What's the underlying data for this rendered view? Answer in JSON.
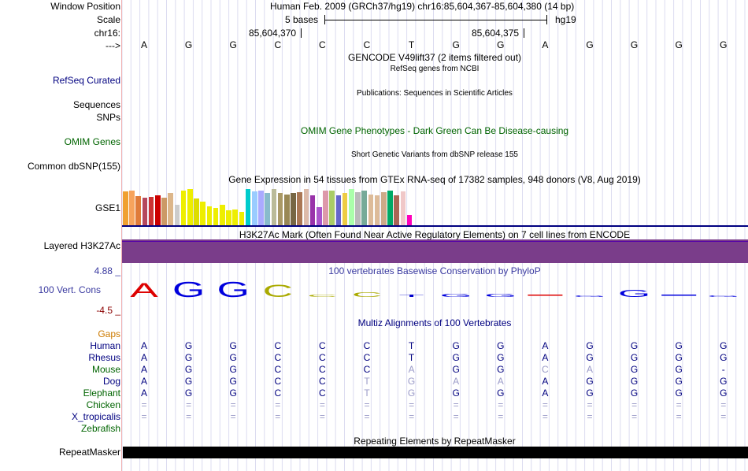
{
  "header": {
    "window_position_label": "Window Position",
    "window_position_value": "Human Feb. 2009 (GRCh37/hg19)   chr16:85,604,367-85,604,380 (14 bp)",
    "scale_label": "Scale",
    "scale_text": "5 bases",
    "scale_db": "hg19",
    "chrom_label": "chr16:",
    "coord1": "85,604,370",
    "coord2": "85,604,375",
    "strand_label": "--->"
  },
  "bases": [
    "A",
    "G",
    "G",
    "C",
    "C",
    "C",
    "T",
    "G",
    "G",
    "A",
    "G",
    "G",
    "G",
    "G"
  ],
  "tracks": {
    "gencode_title": "GENCODE V49lift37 (2 items filtered out)",
    "refseq_label": "RefSeq Curated",
    "refseq_title": "RefSeq genes from NCBI",
    "sequences_label": "Sequences",
    "snps_label": "SNPs",
    "publications_title": "Publications: Sequences in Scientific Articles",
    "omim_title": "OMIM Gene Phenotypes - Dark Green Can Be Disease-causing",
    "omim_label": "OMIM Genes",
    "dbsnp_title": "Short Genetic Variants from dbSNP release 155",
    "dbsnp_label": "Common dbSNP(155)",
    "gtex_title": "Gene Expression in 54 tissues from GTEx RNA-seq of 17382 samples, 948 donors (V8, Aug 2019)",
    "gtex_label": "GSE1",
    "h3k27_title": "H3K27Ac Mark (Often Found Near Active Regulatory Elements) on 7 cell lines from ENCODE",
    "h3k27_label": "Layered H3K27Ac",
    "phylop_max": "4.88 _",
    "phylop_min": "-4.5 _",
    "phylop_label": "100 Vert. Cons",
    "phylop_title": "100 vertebrates Basewise Conservation by PhyloP",
    "multiz_title": "Multiz Alignments of 100 Vertebrates",
    "gaps_label": "Gaps",
    "repeat_title": "Repeating Elements by RepeatMasker",
    "repeat_label": "RepeatMasker"
  },
  "gtex_bars": [
    {
      "h": 0.9,
      "c": "#f0a030"
    },
    {
      "h": 0.92,
      "c": "#f7a35c"
    },
    {
      "h": 0.78,
      "c": "#e07b39"
    },
    {
      "h": 0.72,
      "c": "#b5485d"
    },
    {
      "h": 0.75,
      "c": "#cc3333"
    },
    {
      "h": 0.8,
      "c": "#cc0000"
    },
    {
      "h": 0.72,
      "c": "#cc9966"
    },
    {
      "h": 0.85,
      "c": "#dcb68a"
    },
    {
      "h": 0.55,
      "c": "#cccccc"
    },
    {
      "h": 0.92,
      "c": "#eeee00"
    },
    {
      "h": 0.95,
      "c": "#eeee00"
    },
    {
      "h": 0.7,
      "c": "#dddd00"
    },
    {
      "h": 0.62,
      "c": "#eeee00"
    },
    {
      "h": 0.5,
      "c": "#eeee00"
    },
    {
      "h": 0.45,
      "c": "#eeee00"
    },
    {
      "h": 0.55,
      "c": "#eeee00"
    },
    {
      "h": 0.4,
      "c": "#eeee00"
    },
    {
      "h": 0.42,
      "c": "#eeee00"
    },
    {
      "h": 0.35,
      "c": "#eeee00"
    },
    {
      "h": 0.95,
      "c": "#00cccc"
    },
    {
      "h": 0.9,
      "c": "#99ccff"
    },
    {
      "h": 0.92,
      "c": "#aaaaff"
    },
    {
      "h": 0.85,
      "c": "#88bbcc"
    },
    {
      "h": 0.95,
      "c": "#bbbb99"
    },
    {
      "h": 0.85,
      "c": "#aa9966"
    },
    {
      "h": 0.82,
      "c": "#998855"
    },
    {
      "h": 0.85,
      "c": "#776644"
    },
    {
      "h": 0.88,
      "c": "#aa7755"
    },
    {
      "h": 0.95,
      "c": "#ddbbaa"
    },
    {
      "h": 0.8,
      "c": "#9933aa"
    },
    {
      "h": 0.48,
      "c": "#aa55cc"
    },
    {
      "h": 0.92,
      "c": "#dd99aa"
    },
    {
      "h": 0.92,
      "c": "#aacc66"
    },
    {
      "h": 0.8,
      "c": "#6666cc"
    },
    {
      "h": 0.85,
      "c": "#eecc44"
    },
    {
      "h": 0.95,
      "c": "#aaffaa"
    },
    {
      "h": 0.88,
      "c": "#bbbbbb"
    },
    {
      "h": 0.92,
      "c": "#77aa99"
    },
    {
      "h": 0.82,
      "c": "#ddbb99"
    },
    {
      "h": 0.8,
      "c": "#ddbb99"
    },
    {
      "h": 0.88,
      "c": "#ccaa88"
    },
    {
      "h": 0.92,
      "c": "#00aa66"
    },
    {
      "h": 0.8,
      "c": "#aa6655"
    },
    {
      "h": 0.9,
      "c": "#f0c8c8"
    },
    {
      "h": 0.28,
      "c": "#ff00bb"
    }
  ],
  "phylop_logo": [
    {
      "b": "A",
      "h": 0.9,
      "c": "#dd0000"
    },
    {
      "b": "G",
      "h": 1.0,
      "c": "#0000dd"
    },
    {
      "b": "G",
      "h": 1.0,
      "c": "#0000dd"
    },
    {
      "b": "C",
      "h": 0.8,
      "c": "#aaaa00"
    },
    {
      "b": "C",
      "h": 0.15,
      "c": "#aaaa00"
    },
    {
      "b": "C",
      "h": 0.3,
      "c": "#aaaa00"
    },
    {
      "b": "T",
      "h": 0.15,
      "c": "#0000cc"
    },
    {
      "b": "G",
      "h": 0.2,
      "c": "#0000dd"
    },
    {
      "b": "G",
      "h": 0.2,
      "c": "#0000dd"
    },
    {
      "b": "A",
      "h": 0.0,
      "c": "#dd0000"
    },
    {
      "b": "G",
      "h": 0.1,
      "c": "#0000dd"
    },
    {
      "b": "G",
      "h": 0.45,
      "c": "#0000dd"
    },
    {
      "b": "G",
      "h": 0.0,
      "c": "#0000dd"
    },
    {
      "b": "G",
      "h": 0.1,
      "c": "#0000dd"
    }
  ],
  "species": [
    {
      "name": "Human",
      "color": "#000080",
      "seq": [
        "A",
        "G",
        "G",
        "C",
        "C",
        "C",
        "T",
        "G",
        "G",
        "A",
        "G",
        "G",
        "G",
        "G"
      ],
      "dim": []
    },
    {
      "name": "Rhesus",
      "color": "#000080",
      "seq": [
        "A",
        "G",
        "G",
        "C",
        "C",
        "C",
        "T",
        "G",
        "G",
        "A",
        "G",
        "G",
        "G",
        "G"
      ],
      "dim": []
    },
    {
      "name": "Mouse",
      "color": "#006400",
      "seq": [
        "A",
        "G",
        "G",
        "C",
        "C",
        "C",
        "A",
        "G",
        "G",
        "C",
        "A",
        "G",
        "G",
        "-"
      ],
      "dim": [
        6,
        9,
        10
      ]
    },
    {
      "name": "Dog",
      "color": "#000080",
      "seq": [
        "A",
        "G",
        "G",
        "C",
        "C",
        "T",
        "G",
        "A",
        "A",
        "A",
        "G",
        "G",
        "G",
        "G"
      ],
      "dim": [
        5,
        6,
        7,
        8
      ]
    },
    {
      "name": "Elephant",
      "color": "#006400",
      "seq": [
        "A",
        "G",
        "G",
        "C",
        "C",
        "T",
        "G",
        "G",
        "G",
        "A",
        "G",
        "G",
        "G",
        "G"
      ],
      "dim": [
        5,
        6
      ]
    },
    {
      "name": "Chicken",
      "color": "#006400",
      "seq": [
        "=",
        "=",
        "=",
        "=",
        "=",
        "=",
        "=",
        "=",
        "=",
        "=",
        "=",
        "=",
        "=",
        "="
      ],
      "dim": [
        0,
        1,
        2,
        3,
        4,
        5,
        6,
        7,
        8,
        9,
        10,
        11,
        12,
        13
      ]
    },
    {
      "name": "X_tropicalis",
      "color": "#000080",
      "seq": [
        "=",
        "=",
        "=",
        "=",
        "=",
        "=",
        "=",
        "=",
        "=",
        "=",
        "=",
        "=",
        "=",
        "="
      ],
      "dim": [
        0,
        1,
        2,
        3,
        4,
        5,
        6,
        7,
        8,
        9,
        10,
        11,
        12,
        13
      ]
    },
    {
      "name": "Zebrafish",
      "color": "#006400",
      "seq": [],
      "dim": []
    }
  ],
  "colors": {
    "navy": "#000080",
    "green": "#006400",
    "orange": "#cc7a00",
    "purple": "#7a3d8a",
    "purple_line": "#5500aa"
  }
}
